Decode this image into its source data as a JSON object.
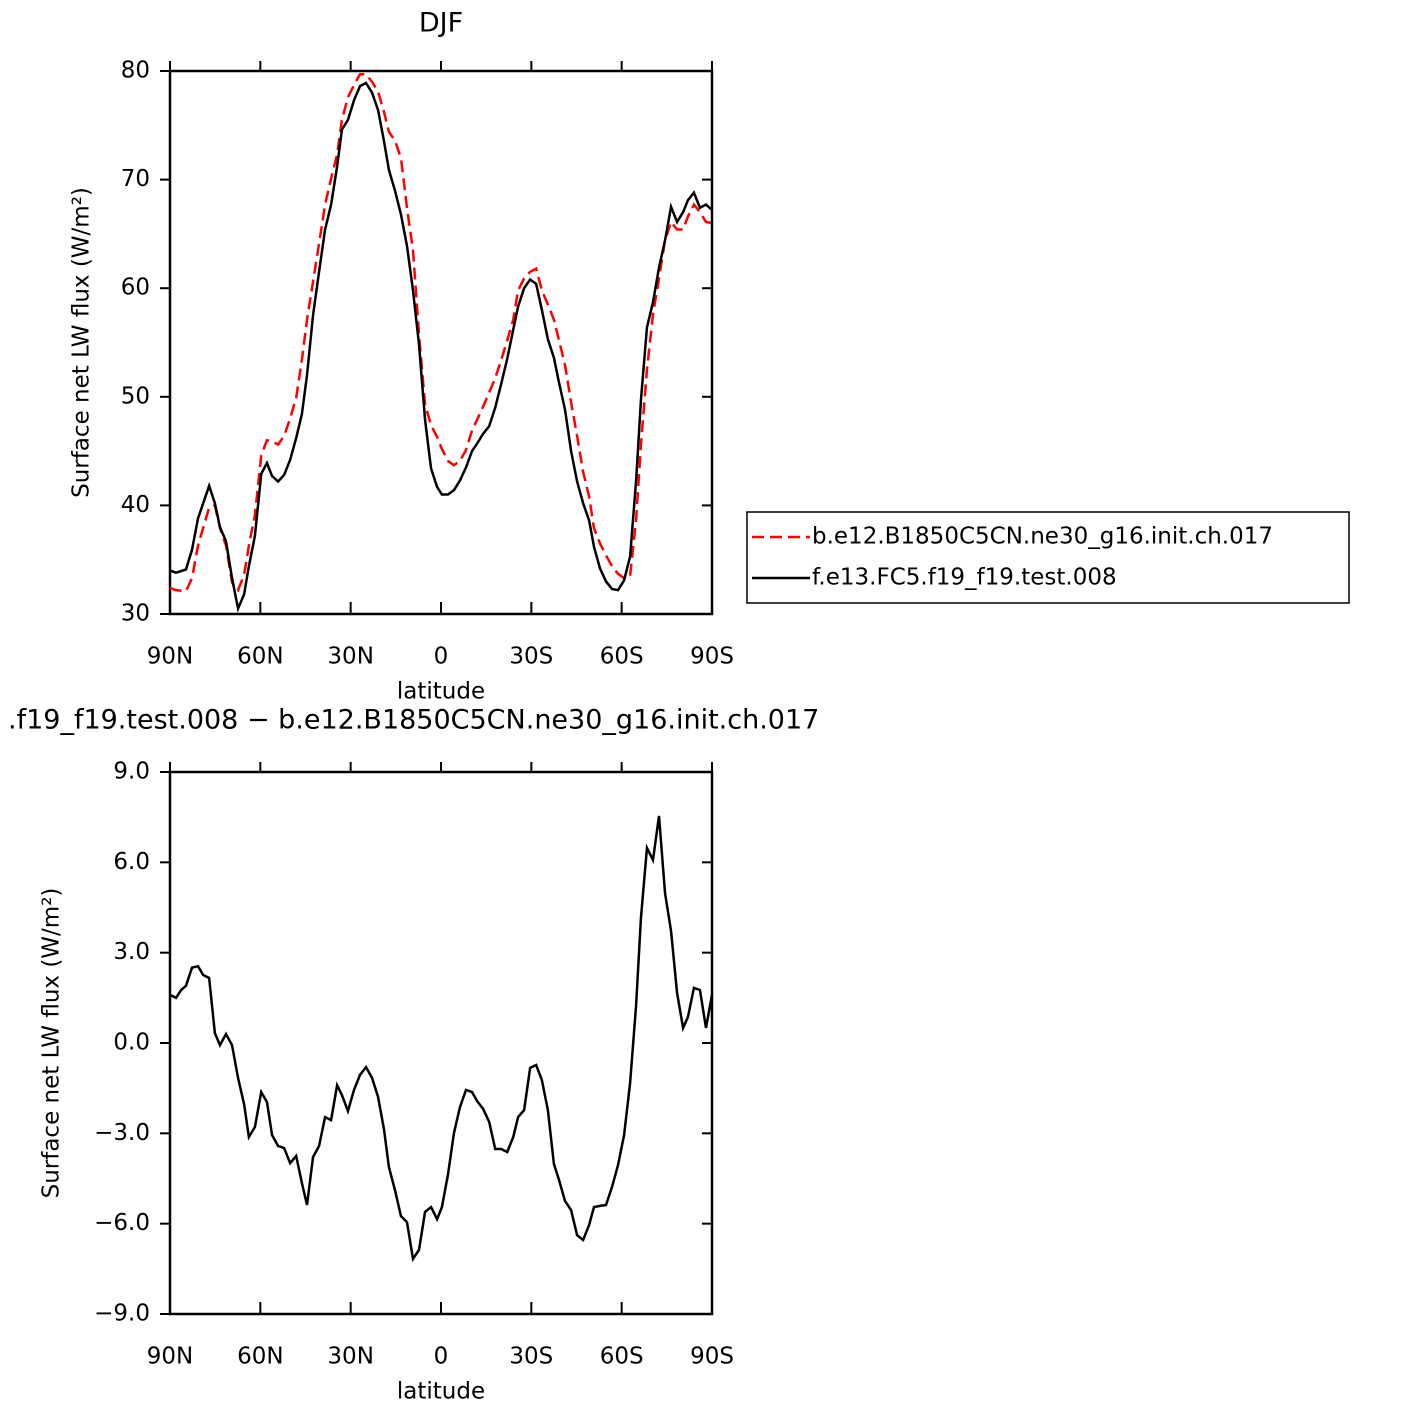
{
  "chart_data": [
    {
      "type": "line",
      "title": "DJF",
      "x_label": "latitude",
      "y_label": "Surface net LW flux (W/m²)",
      "xlim": [
        90,
        -90
      ],
      "xticks": [
        {
          "value": 90,
          "label": "90N"
        },
        {
          "value": 60,
          "label": "60N"
        },
        {
          "value": 30,
          "label": "30N"
        },
        0,
        {
          "value": -30,
          "label": "30S"
        },
        {
          "value": -60,
          "label": "60S"
        },
        {
          "value": -90,
          "label": "90S"
        }
      ],
      "ylim": [
        30,
        80
      ],
      "yticks": [
        30,
        40,
        50,
        60,
        70,
        80
      ],
      "legend": "right",
      "x": [
        90,
        88,
        84.7,
        82.7,
        80.7,
        77,
        75.1,
        73.4,
        71.4,
        69.4,
        67.4,
        65.4,
        63.8,
        61.8,
        59.7,
        57.8,
        56.1,
        54.1,
        52.1,
        50.1,
        48.1,
        46.2,
        44.5,
        42.5,
        40.5,
        38.5,
        36.5,
        34.5,
        32.9,
        30.9,
        28.9,
        26.9,
        24.9,
        22.9,
        20.9,
        18.9,
        17.3,
        15.3,
        13.3,
        11.3,
        9.3,
        7.3,
        5.3,
        3.3,
        1.3,
        -0.3,
        -2.3,
        -4.3,
        -6.3,
        -8.3,
        -10.3,
        -12,
        -14,
        -16,
        -18,
        -20,
        -22,
        -24,
        -25.6,
        -27.6,
        -29.6,
        -31.6,
        -33.5,
        -35.5,
        -37.5,
        -39.2,
        -41.2,
        -43.2,
        -45.2,
        -47.2,
        -49.2,
        -50.8,
        -52.8,
        -54.8,
        -56.8,
        -58.8,
        -60.8,
        -62.8,
        -64.8,
        -66.4,
        -68.4,
        -70.4,
        -72.4,
        -74.4,
        -76.4,
        -78.4,
        -80.4,
        -82,
        -84,
        -86,
        -88,
        -90
      ],
      "series": [
        {
          "name": "b.e12.B1850C5CN.ne30_g16.init.ch.017",
          "color": "#ff0000",
          "line_style": "dashed",
          "values": [
            32.4,
            32.2,
            32.1,
            33.3,
            36.3,
            39.8,
            40,
            37.9,
            36.3,
            32.9,
            32.2,
            33.6,
            36.3,
            39.1,
            44.6,
            46,
            45.9,
            45.6,
            46.4,
            48,
            49.9,
            53.4,
            57.1,
            60.6,
            64.1,
            67.7,
            70.1,
            72.3,
            75.5,
            77.6,
            78.7,
            79.7,
            79.7,
            79,
            78.1,
            76.2,
            74.4,
            73.6,
            72,
            67.4,
            63.5,
            55.7,
            49.3,
            47.4,
            46.3,
            45.2,
            44.1,
            43.7,
            44.1,
            45.1,
            46.9,
            47.9,
            49.1,
            50.4,
            51.7,
            53.4,
            55.2,
            57.1,
            59.8,
            60.9,
            61.5,
            61.8,
            59.8,
            58.5,
            57.1,
            55.2,
            52.9,
            49.5,
            46.4,
            43.1,
            40.8,
            37.9,
            36.5,
            35.4,
            34.4,
            33.7,
            33.3,
            33.5,
            38.7,
            45.6,
            52.5,
            57.6,
            60.9,
            64.4,
            66.1,
            65.4,
            65.4,
            66.6,
            67.7,
            67,
            66.1,
            66
          ]
        },
        {
          "name": "f.e13.FC5.f19_f19.test.008",
          "color": "#000000",
          "line_style": "solid",
          "values": [
            34,
            33.8,
            34.1,
            35.9,
            38.8,
            41.8,
            40.2,
            38,
            36.7,
            33.3,
            30.5,
            31.8,
            34.4,
            37.2,
            42.9,
            43.9,
            42.7,
            42.2,
            42.8,
            44.2,
            46.2,
            48.4,
            52,
            57.5,
            61.5,
            65.4,
            67.7,
            71.2,
            74.6,
            75.5,
            77.3,
            78.6,
            78.9,
            78,
            76.4,
            73.5,
            70.9,
            69,
            66.8,
            63.9,
            59.8,
            54.8,
            47.9,
            43.4,
            41.7,
            41,
            41,
            41.4,
            42.3,
            43.5,
            45,
            45.7,
            46.6,
            47.3,
            49,
            51.2,
            53.5,
            56.2,
            58.3,
            60,
            60.8,
            60.4,
            58,
            55.3,
            53.6,
            51.3,
            48.8,
            45,
            42.2,
            40.2,
            38.6,
            36.2,
            34.2,
            33,
            32.3,
            32.2,
            33.1,
            35.3,
            42.3,
            49.7,
            56.4,
            58.7,
            61.9,
            64.4,
            67.5,
            66.1,
            67,
            68.1,
            68.8,
            67.4,
            67.7,
            67.2
          ]
        }
      ]
    },
    {
      "type": "line",
      "title": ".f19_f19.test.008 − b.e12.B1850C5CN.ne30_g16.init.ch.017",
      "x_label": "latitude",
      "y_label": "Surface net LW flux (W/m²)",
      "xlim": [
        90,
        -90
      ],
      "xticks": [
        {
          "value": 90,
          "label": "90N"
        },
        {
          "value": 60,
          "label": "60N"
        },
        {
          "value": 30,
          "label": "30N"
        },
        0,
        {
          "value": -30,
          "label": "30S"
        },
        {
          "value": -60,
          "label": "60S"
        },
        {
          "value": -90,
          "label": "90S"
        }
      ],
      "ylim": [
        -9,
        9
      ],
      "yticks": [
        {
          "value": -9,
          "label": "−9.0"
        },
        {
          "value": -6,
          "label": "−6.0"
        },
        {
          "value": -3,
          "label": "−3.0"
        },
        {
          "value": 0,
          "label": "0.0"
        },
        {
          "value": 3,
          "label": "3.0"
        },
        {
          "value": 6,
          "label": "6.0"
        },
        {
          "value": 9,
          "label": "9.0"
        }
      ],
      "x": [
        90,
        88,
        86.3,
        84.7,
        82.7,
        80.7,
        79,
        77,
        75.1,
        73.4,
        71.4,
        69.4,
        67.4,
        65.4,
        63.8,
        61.8,
        59.7,
        57.8,
        56.1,
        54.1,
        52.1,
        50.1,
        48.1,
        46.2,
        44.5,
        42.5,
        40.5,
        38.5,
        36.5,
        34.5,
        32.9,
        30.9,
        28.9,
        26.9,
        24.9,
        22.9,
        20.9,
        18.9,
        17.3,
        15.3,
        13.3,
        11.3,
        9.3,
        7.3,
        5.3,
        3.3,
        1.3,
        -0.3,
        -2.3,
        -4.3,
        -6.3,
        -8.3,
        -10.3,
        -12,
        -14,
        -16,
        -18,
        -20,
        -22,
        -24,
        -25.6,
        -27.6,
        -29.6,
        -31.6,
        -33.5,
        -35.5,
        -37.5,
        -39.2,
        -41.2,
        -43.2,
        -45.2,
        -47.2,
        -49.2,
        -50.8,
        -52.8,
        -54.8,
        -56.8,
        -58.8,
        -60.8,
        -62.8,
        -64.8,
        -66.4,
        -68.4,
        -70.4,
        -72.4,
        -74.4,
        -76.4,
        -78.4,
        -80.4,
        -82,
        -84,
        -86,
        -88,
        -90
      ],
      "series": [
        {
          "color": "#000000",
          "line_style": "solid",
          "values": [
            1.6,
            1.5,
            1.76,
            1.9,
            2.5,
            2.55,
            2.26,
            2.16,
            0.33,
            -0.07,
            0.3,
            -0.07,
            -1.16,
            -2.03,
            -3.12,
            -2.79,
            -1.63,
            -1.96,
            -3.06,
            -3.42,
            -3.49,
            -3.99,
            -3.75,
            -4.65,
            -5.38,
            -3.79,
            -3.42,
            -2.46,
            -2.56,
            -1.4,
            -1.73,
            -2.26,
            -1.56,
            -1.06,
            -0.8,
            -1.16,
            -1.79,
            -2.89,
            -4.12,
            -4.88,
            -5.75,
            -5.95,
            -7.17,
            -6.87,
            -5.61,
            -5.45,
            -5.85,
            -5.45,
            -4.38,
            -2.99,
            -2.13,
            -1.56,
            -1.63,
            -1.93,
            -2.19,
            -2.62,
            -3.52,
            -3.52,
            -3.62,
            -3.12,
            -2.46,
            -2.23,
            -0.83,
            -0.73,
            -1.23,
            -2.23,
            -4.02,
            -4.55,
            -5.25,
            -5.55,
            -6.38,
            -6.54,
            -6.04,
            -5.45,
            -5.41,
            -5.38,
            -4.78,
            -4.05,
            -3.06,
            -1.33,
            1.26,
            4.15,
            6.48,
            6.08,
            7.54,
            4.98,
            3.72,
            1.66,
            0.5,
            0.86,
            1.83,
            1.76,
            0.5,
            1.6
          ]
        }
      ]
    }
  ]
}
